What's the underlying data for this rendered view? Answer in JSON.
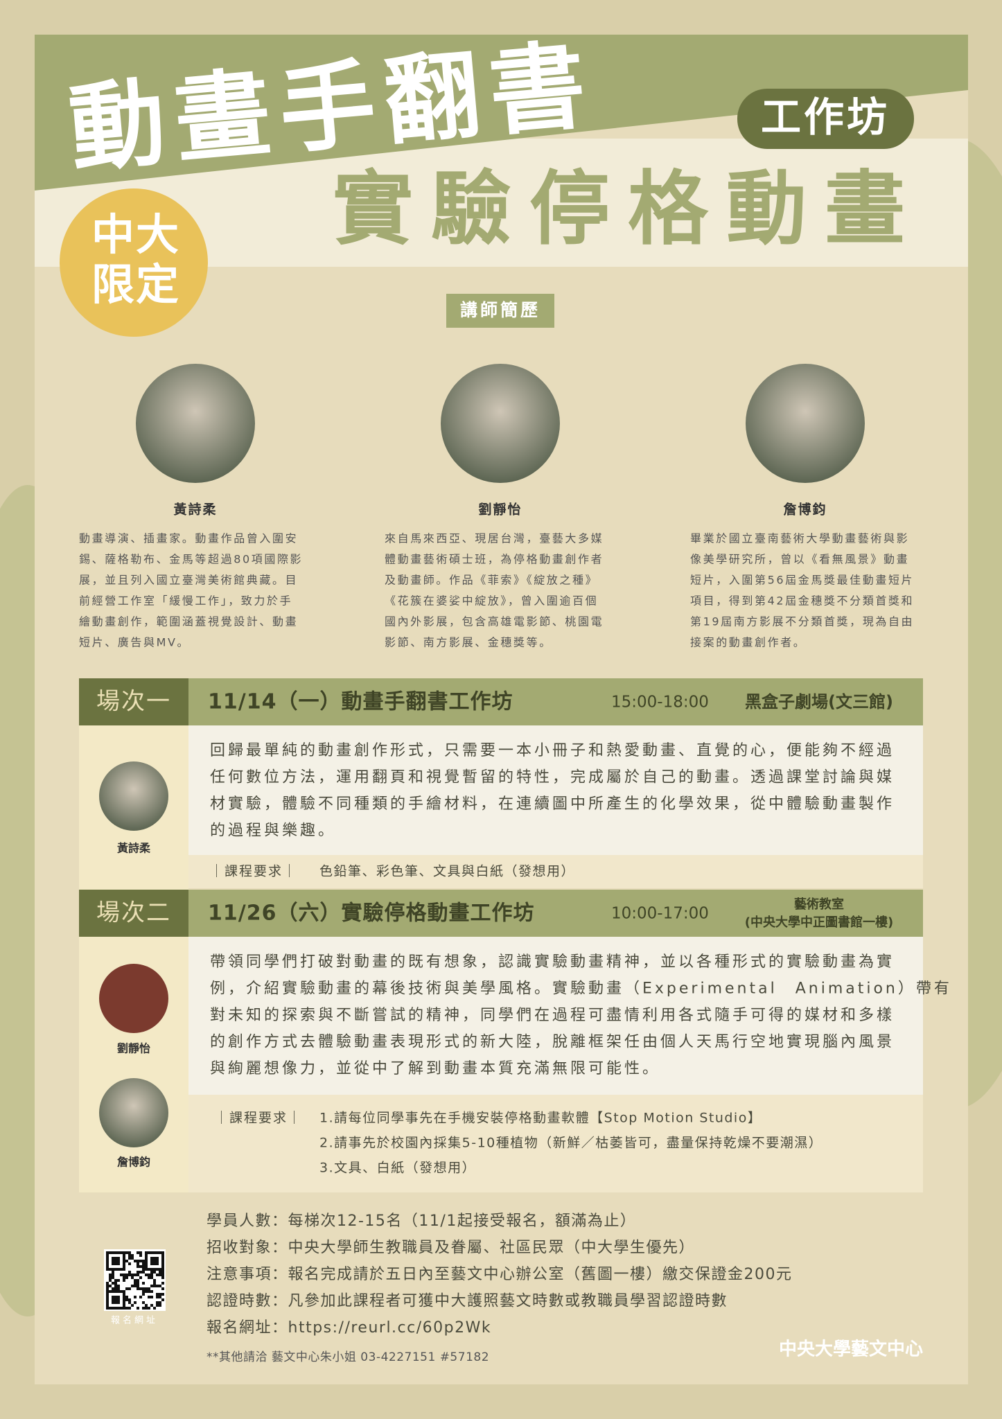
{
  "title": "動畫手翻書",
  "badge": "工作坊",
  "subtitle": "實驗停格動畫",
  "limited": [
    "中大",
    "限定"
  ],
  "section_label": "講師簡歷",
  "instructors": [
    {
      "name": "黃詩柔",
      "bio": [
        "動畫導演、插畫家。動畫作品曾入圍安",
        "錫、薩格勒布、金馬等超過80項國際影",
        "展，並且列入國立臺灣美術館典藏。目",
        "前經營工作室「緩慢工作」，致力於手",
        "繪動畫創作，範圍涵蓋視覺設計、動畫",
        "短片、廣告與MV。"
      ]
    },
    {
      "name": "劉靜怡",
      "bio": [
        "來自馬來西亞、現居台灣，臺藝大多媒",
        "體動畫藝術碩士班，為停格動畫創作者",
        "及動畫師。作品《菲索》《綻放之種》",
        "《花簇在婆娑中綻放》，曾入圍逾百個",
        "國內外影展，包含高雄電影節、桃園電",
        "影節、南方影展、金穗獎等。"
      ]
    },
    {
      "name": "詹博鈞",
      "bio": [
        "畢業於國立臺南藝術大學動畫藝術與影",
        "像美學研究所，曾以《看無風景》動畫",
        "短片，入圍第56屆金馬獎最佳動畫短片",
        "項目，得到第42屆金穗獎不分類首獎和",
        "第19屆南方影展不分類首獎，現為自由",
        "接案的動畫創作者。"
      ]
    }
  ],
  "sessions": [
    {
      "label": "場次一",
      "heading": "11/14（一）動畫手翻書工作坊",
      "time": "15:00-18:00",
      "venue": [
        "黑盒子劇場(文三館)"
      ],
      "description": [
        "回歸最單純的動畫創作形式，只需要一本小冊子和熱愛動畫、直覺的心，便能夠不經過",
        "任何數位方法，運用翻頁和視覺暫留的特性，完成屬於自己的動畫。透過課堂討論與媒",
        "材實驗，體驗不同種類的手繪材料，在連續圖中所產生的化學效果，從中體驗動畫製作",
        "的過程與樂趣。"
      ],
      "requirement_label": "｜課程要求｜",
      "requirements": [
        "色鉛筆、彩色筆、文具與白紙（發想用）"
      ],
      "instructors": [
        "黃詩柔"
      ]
    },
    {
      "label": "場次二",
      "heading": "11/26（六）實驗停格動畫工作坊",
      "time": "10:00-17:00",
      "venue": [
        "藝術教室",
        "(中央大學中正圖書館一樓)"
      ],
      "description": [
        "帶領同學們打破對動畫的既有想象，認識實驗動畫精神，並以各種形式的實驗動畫為實",
        "例，介紹實驗動畫的幕後技術與美學風格。實驗動畫（Experimental　Animation）帶有",
        "對未知的探索與不斷嘗試的精神，同學們在過程可盡情利用各式隨手可得的媒材和多樣",
        "的創作方式去體驗動畫表現形式的新大陸，脫離框架任由個人天馬行空地實現腦內風景",
        "與絢麗想像力，並從中了解到動畫本質充滿無限可能性。"
      ],
      "requirement_label": "｜課程要求｜",
      "requirements": [
        "1.請每位同學事先在手機安裝停格動畫軟體【Stop Motion Studio】",
        "2.請事先於校園內採集5-10種植物（新鮮／枯萎皆可，盡量保持乾燥不要潮濕）",
        "3.文具、白紙（發想用）"
      ],
      "instructors": [
        "劉靜怡",
        "詹博鈞"
      ]
    }
  ],
  "info": [
    "學員人數：每梯次12-15名（11/1起接受報名，額滿為止）",
    "招收對象：中央大學師生教職員及眷屬、社區民眾（中大學生優先）",
    "注意事項：報名完成請於五日內至藝文中心辦公室（舊圖一樓）繳交保證金200元",
    "認證時數：凡參加此課程者可獲中大護照藝文時數或教職員學習認證時數",
    "報名網址：https://reurl.cc/60p2Wk"
  ],
  "contact": "**其他請洽  藝文中心朱小姐  03-4227151 #57182",
  "qr_caption": "報名網址",
  "organizer": "中央大學藝文中心"
}
